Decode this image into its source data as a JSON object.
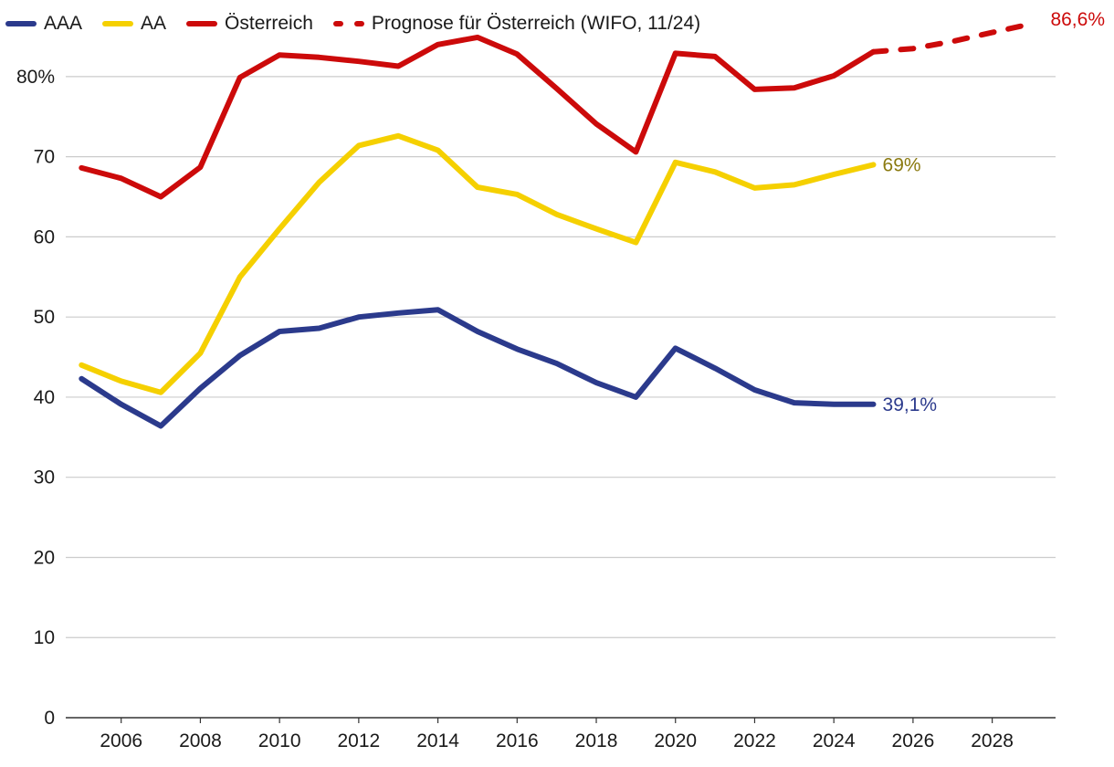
{
  "legend": {
    "aaa": "AAA",
    "aa": "AA",
    "at": "Österreich",
    "forecast": "Prognose für Österreich (WIFO, 11/24)"
  },
  "colors": {
    "aaa": "#2b3a8c",
    "aa": "#f5d000",
    "at": "#cc0a0a",
    "aa_label": "#8b7a10",
    "grid": "#cccccc",
    "axis": "#333333"
  },
  "chart_data": {
    "type": "line",
    "title": "",
    "xlabel": "",
    "ylabel": "",
    "xlim": [
      2004.6,
      2029.6
    ],
    "ylim": [
      0,
      85
    ],
    "grid": true,
    "legend_position": "top-left",
    "x_ticks": [
      2006,
      2008,
      2010,
      2012,
      2014,
      2016,
      2018,
      2020,
      2022,
      2024,
      2026,
      2028
    ],
    "y_ticks": [
      {
        "value": 0,
        "label": "0"
      },
      {
        "value": 10,
        "label": "10"
      },
      {
        "value": 20,
        "label": "20"
      },
      {
        "value": 30,
        "label": "30"
      },
      {
        "value": 40,
        "label": "40"
      },
      {
        "value": 50,
        "label": "50"
      },
      {
        "value": 60,
        "label": "60"
      },
      {
        "value": 70,
        "label": "70"
      },
      {
        "value": 80,
        "label": "80%"
      }
    ],
    "series": [
      {
        "key": "aaa",
        "name": "AAA",
        "x": [
          2005,
          2006,
          2007,
          2008,
          2009,
          2010,
          2011,
          2012,
          2013,
          2014,
          2015,
          2016,
          2017,
          2018,
          2019,
          2020,
          2021,
          2022,
          2023,
          2024,
          2025
        ],
        "values": [
          42.3,
          39.1,
          36.4,
          41.1,
          45.2,
          48.2,
          48.6,
          50.0,
          50.5,
          50.9,
          48.2,
          46.0,
          44.2,
          41.8,
          40.0,
          46.1,
          43.6,
          40.9,
          39.3,
          39.1,
          39.1
        ],
        "end_label": "39,1%"
      },
      {
        "key": "aa",
        "name": "AA",
        "x": [
          2005,
          2006,
          2007,
          2008,
          2009,
          2010,
          2011,
          2012,
          2013,
          2014,
          2015,
          2016,
          2017,
          2018,
          2019,
          2020,
          2021,
          2022,
          2023,
          2024,
          2025
        ],
        "values": [
          44.0,
          42.0,
          40.6,
          45.5,
          55.0,
          61.0,
          66.8,
          71.4,
          72.6,
          70.8,
          66.2,
          65.3,
          62.8,
          61.0,
          59.3,
          69.3,
          68.1,
          66.1,
          66.5,
          67.8,
          69.0
        ],
        "end_label": "69%"
      },
      {
        "key": "at",
        "name": "Österreich",
        "x": [
          2005,
          2006,
          2007,
          2008,
          2009,
          2010,
          2011,
          2012,
          2013,
          2014,
          2015,
          2016,
          2017,
          2018,
          2019,
          2020,
          2021,
          2022,
          2023,
          2024,
          2025
        ],
        "values": [
          68.6,
          67.3,
          65.0,
          68.7,
          79.9,
          82.7,
          82.4,
          81.9,
          81.3,
          84.0,
          84.9,
          82.8,
          78.5,
          74.1,
          70.6,
          82.9,
          82.5,
          78.4,
          78.6,
          80.1,
          83.1
        ]
      },
      {
        "key": "forecast",
        "name": "Prognose für Österreich (WIFO, 11/24)",
        "dashed": true,
        "x": [
          2025,
          2026,
          2027,
          2028,
          2029
        ],
        "values": [
          83.1,
          83.5,
          84.4,
          85.5,
          86.6
        ],
        "end_label": "86,6%"
      }
    ]
  }
}
